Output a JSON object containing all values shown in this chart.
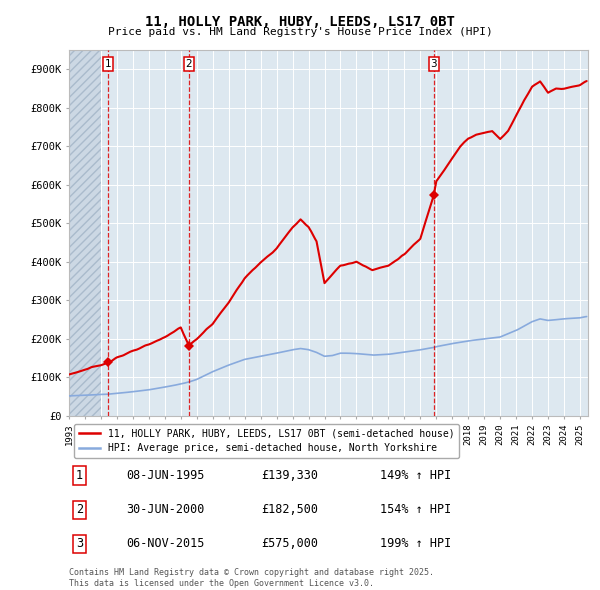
{
  "title_line1": "11, HOLLY PARK, HUBY, LEEDS, LS17 0BT",
  "title_line2": "Price paid vs. HM Land Registry's House Price Index (HPI)",
  "ylim": [
    0,
    950000
  ],
  "yticks": [
    0,
    100000,
    200000,
    300000,
    400000,
    500000,
    600000,
    700000,
    800000,
    900000
  ],
  "ytick_labels": [
    "£0",
    "£100K",
    "£200K",
    "£300K",
    "£400K",
    "£500K",
    "£600K",
    "£700K",
    "£800K",
    "£900K"
  ],
  "xmin": 1993.0,
  "xmax": 2025.5,
  "sale_color": "#dd0000",
  "hpi_color": "#88aadd",
  "bg_plot": "#dde8f0",
  "bg_hatch_color": "#ccd8e4",
  "legend_sale": "11, HOLLY PARK, HUBY, LEEDS, LS17 0BT (semi-detached house)",
  "legend_hpi": "HPI: Average price, semi-detached house, North Yorkshire",
  "transactions": [
    {
      "num": 1,
      "date_x": 1995.44,
      "price": 139330
    },
    {
      "num": 2,
      "date_x": 2000.5,
      "price": 182500
    },
    {
      "num": 3,
      "date_x": 2015.85,
      "price": 575000
    }
  ],
  "footnote1": "Contains HM Land Registry data © Crown copyright and database right 2025.",
  "footnote2": "This data is licensed under the Open Government Licence v3.0.",
  "hatch_xmin": 1993.0,
  "hatch_xmax": 1995.0
}
